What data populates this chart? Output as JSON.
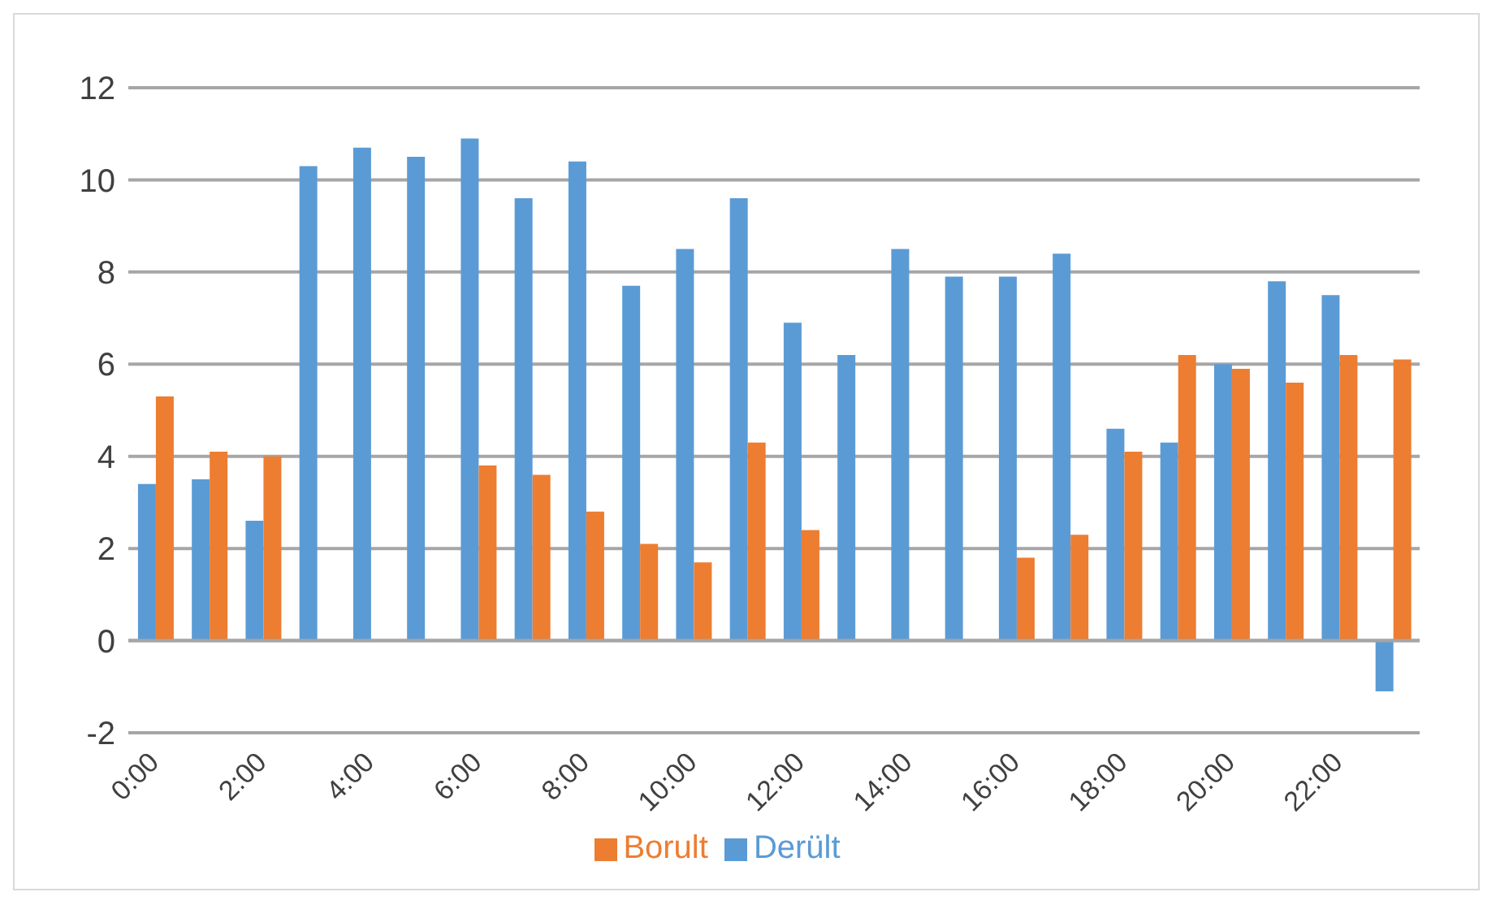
{
  "chart_data": {
    "type": "bar",
    "categories": [
      "0:00",
      null,
      "2:00",
      null,
      "4:00",
      null,
      "6:00",
      null,
      "8:00",
      null,
      "10:00",
      null,
      "12:00",
      null,
      "14:00",
      null,
      "16:00",
      null,
      "18:00",
      null,
      "20:00",
      null,
      "22:00",
      null
    ],
    "series": [
      {
        "name": "Derült",
        "color": "#5b9bd5",
        "values": [
          3.4,
          3.5,
          2.6,
          10.3,
          10.7,
          10.5,
          10.9,
          9.6,
          10.4,
          7.7,
          8.5,
          9.6,
          6.9,
          6.2,
          8.5,
          7.9,
          7.9,
          8.4,
          4.6,
          4.3,
          6.0,
          7.8,
          7.5,
          -1.1
        ]
      },
      {
        "name": "Borult",
        "color": "#ed7d31",
        "values": [
          5.3,
          4.1,
          4.0,
          null,
          null,
          null,
          3.8,
          3.6,
          2.8,
          2.1,
          1.7,
          4.3,
          2.4,
          null,
          null,
          null,
          1.8,
          2.3,
          4.1,
          6.2,
          5.9,
          5.6,
          6.2,
          6.1
        ]
      }
    ],
    "ylim": [
      -2,
      12
    ],
    "yticks": [
      -2,
      0,
      2,
      4,
      6,
      8,
      10,
      12
    ],
    "grid": "y",
    "legend": "bottom"
  }
}
